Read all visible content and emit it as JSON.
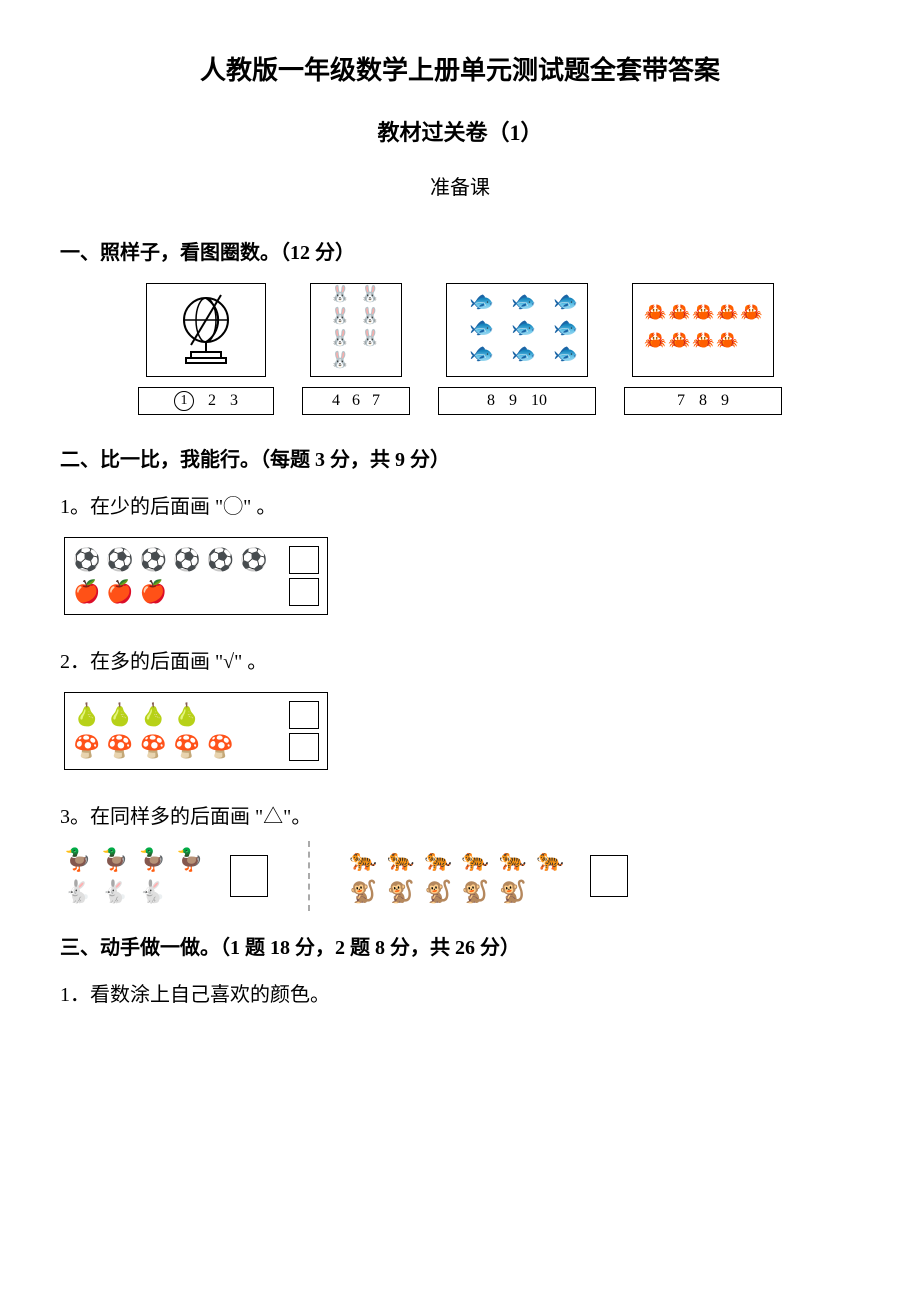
{
  "colors": {
    "text": "#000000",
    "bg": "#ffffff",
    "border": "#000000",
    "dash": "#aaaaaa"
  },
  "typography": {
    "family": "SimSun",
    "title_size": 26,
    "section_size": 20,
    "body_size": 20
  },
  "title": "人教版一年级数学上册单元测试题全套带答案",
  "subtitle": "教材过关卷（1）",
  "subsubtitle": "准备课",
  "section1": {
    "heading": "一、照样子，看图圈数。（12 分）",
    "items": [
      {
        "kind": "globe",
        "count": 1,
        "numbers": [
          "1",
          "2",
          "3"
        ],
        "circled_index": 0
      },
      {
        "kind": "rabbit",
        "count": 7,
        "glyph": "🐰",
        "numbers": [
          "4",
          "6",
          "7"
        ],
        "circled_index": -1
      },
      {
        "kind": "fish",
        "count": 9,
        "glyph": "🐟",
        "numbers": [
          "8",
          "9",
          "10"
        ],
        "circled_index": -1
      },
      {
        "kind": "crab",
        "count": 9,
        "glyph": "🦀",
        "rows": [
          5,
          4
        ],
        "numbers": [
          "7",
          "8",
          "9"
        ],
        "circled_index": -1
      }
    ]
  },
  "section2": {
    "heading": "二、比一比，我能行。（每题 3 分，共 9 分）",
    "q1": {
      "prompt": "1。在少的后面画 \"◯\" 。",
      "rows": [
        {
          "glyph": "⚽",
          "count": 6
        },
        {
          "glyph": "🍎",
          "count": 3
        }
      ]
    },
    "q2": {
      "prompt": "2．在多的后面画 \"√\" 。",
      "rows": [
        {
          "glyph": "🍐",
          "count": 4
        },
        {
          "glyph": "🍄",
          "count": 5
        }
      ]
    },
    "q3": {
      "prompt": "3。在同样多的后面画 \"△\"。",
      "left": {
        "rows": [
          {
            "glyph": "🦆",
            "count": 4
          },
          {
            "glyph": "🐇",
            "count": 3
          }
        ]
      },
      "right": {
        "rows": [
          {
            "glyph": "🐅",
            "count": 6
          },
          {
            "glyph": "🐒",
            "count": 5
          }
        ]
      }
    }
  },
  "section3": {
    "heading": "三、动手做一做。（1 题 18 分，2 题 8 分，共 26 分）",
    "q1": {
      "prompt": "1．看数涂上自己喜欢的颜色。"
    }
  }
}
